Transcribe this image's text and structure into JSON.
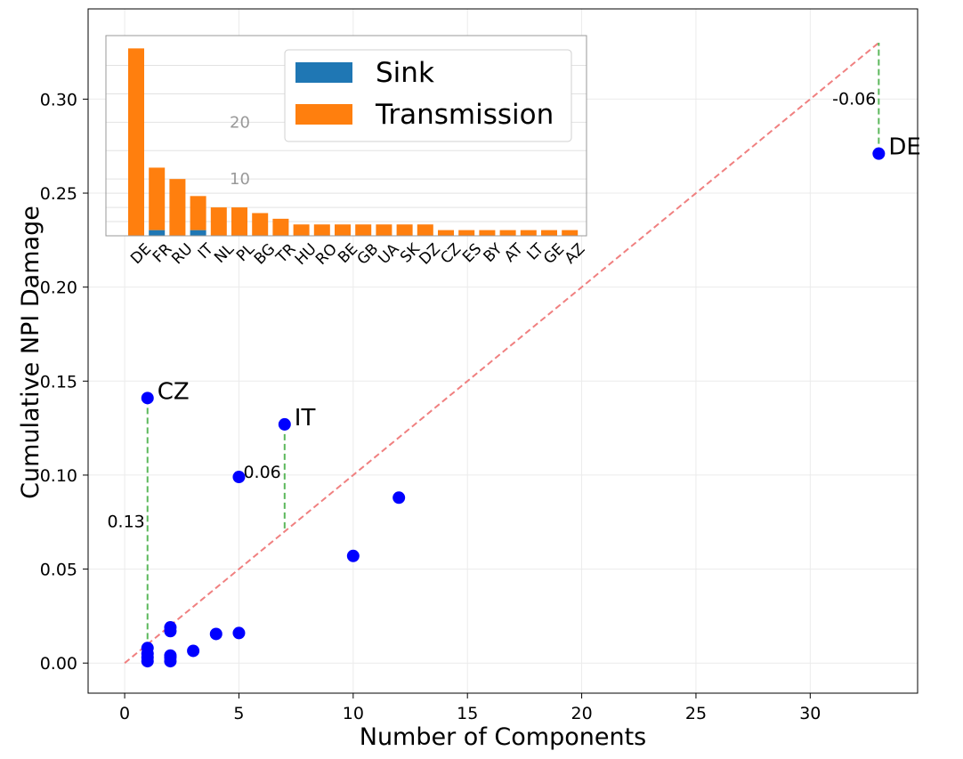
{
  "chart_data": [
    {
      "type": "scatter",
      "xlabel": "Number of Components",
      "ylabel": "Cumulative NPI Damage",
      "xlim": [
        -1.6,
        34.7
      ],
      "ylim": [
        -0.016,
        0.348
      ],
      "xticks": [
        0,
        5,
        10,
        15,
        20,
        25,
        30
      ],
      "yticks": [
        0.0,
        0.05,
        0.1,
        0.15,
        0.2,
        0.25,
        0.3
      ],
      "ytick_labels": [
        "0.00",
        "0.05",
        "0.10",
        "0.15",
        "0.20",
        "0.25",
        "0.30"
      ],
      "grid": true,
      "point_color": "#0000ff",
      "reference_line": {
        "from": [
          0,
          0
        ],
        "to": [
          33,
          0.33
        ],
        "color": "#f08080",
        "style": "dashed"
      },
      "points": [
        {
          "x": 1,
          "y": 0.141
        },
        {
          "x": 1,
          "y": 0.008
        },
        {
          "x": 1,
          "y": 0.005
        },
        {
          "x": 1,
          "y": 0.003
        },
        {
          "x": 1,
          "y": 0.001
        },
        {
          "x": 2,
          "y": 0.019
        },
        {
          "x": 2,
          "y": 0.017
        },
        {
          "x": 2,
          "y": 0.004
        },
        {
          "x": 2,
          "y": 0.003
        },
        {
          "x": 2,
          "y": 0.001
        },
        {
          "x": 3,
          "y": 0.0065
        },
        {
          "x": 4,
          "y": 0.0155
        },
        {
          "x": 5,
          "y": 0.016
        },
        {
          "x": 5,
          "y": 0.099
        },
        {
          "x": 7,
          "y": 0.127
        },
        {
          "x": 10,
          "y": 0.057
        },
        {
          "x": 12,
          "y": 0.088
        },
        {
          "x": 33,
          "y": 0.271
        }
      ],
      "point_labels": [
        {
          "text": "CZ",
          "x": 1,
          "y": 0.141
        },
        {
          "text": "IT",
          "x": 7,
          "y": 0.127
        },
        {
          "text": "DE",
          "x": 33,
          "y": 0.271
        }
      ],
      "residuals": [
        {
          "x": 1,
          "y_from": 0.141,
          "y_to": 0.01,
          "label": "0.13"
        },
        {
          "x": 7,
          "y_from": 0.127,
          "y_to": 0.07,
          "label": ""
        },
        {
          "x": 33,
          "y_from": 0.271,
          "y_to": 0.33,
          "label": "-0.06"
        }
      ],
      "annotations": [
        {
          "text": "0.06",
          "x": 5,
          "y": 0.099
        }
      ],
      "residual_color": "#5cb85c"
    },
    {
      "type": "bar",
      "stacked": true,
      "categories": [
        "DE",
        "FR",
        "RU",
        "IT",
        "NL",
        "PL",
        "BG",
        "TR",
        "HU",
        "RO",
        "BE",
        "GB",
        "UA",
        "SK",
        "DZ",
        "CZ",
        "ES",
        "BY",
        "AT",
        "LT",
        "GE",
        "AZ"
      ],
      "series": [
        {
          "name": "Sink",
          "color": "#1f77b4",
          "values": [
            0,
            1,
            0,
            1,
            0,
            0,
            0,
            0,
            0,
            0,
            0,
            0,
            0,
            0,
            0,
            0,
            0,
            0,
            0,
            0,
            0,
            0
          ]
        },
        {
          "name": "Transmission",
          "color": "#ff7f0e",
          "values": [
            33,
            11,
            10,
            6,
            5,
            5,
            4,
            3,
            2,
            2,
            2,
            2,
            2,
            2,
            2,
            1,
            1,
            1,
            1,
            1,
            1,
            1
          ]
        }
      ],
      "ylim": [
        0,
        34
      ],
      "ytick_labels": [
        "10",
        "20"
      ],
      "yticks": [
        10,
        20
      ],
      "legend": "top-right",
      "grid": true
    }
  ]
}
